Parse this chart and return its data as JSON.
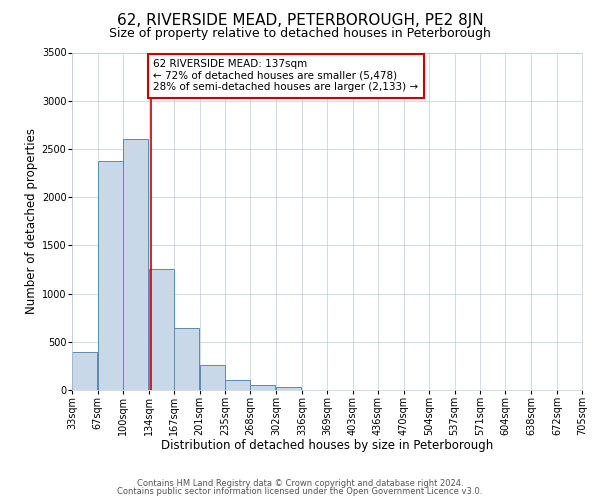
{
  "title": "62, RIVERSIDE MEAD, PETERBOROUGH, PE2 8JN",
  "subtitle": "Size of property relative to detached houses in Peterborough",
  "xlabel": "Distribution of detached houses by size in Peterborough",
  "ylabel": "Number of detached properties",
  "bar_left_edges": [
    33,
    67,
    100,
    134,
    167,
    201,
    235,
    268,
    302,
    336,
    369,
    403,
    436,
    470,
    504,
    537,
    571,
    604,
    638,
    672
  ],
  "bar_heights": [
    390,
    2380,
    2600,
    1250,
    640,
    255,
    105,
    50,
    30,
    0,
    0,
    0,
    0,
    0,
    0,
    0,
    0,
    0,
    0,
    0
  ],
  "bin_width": 33,
  "bar_color": "#c8d8e8",
  "bar_edge_color": "#5a8ab0",
  "vline_x": 137,
  "vline_color": "#cc0000",
  "annotation_line1": "62 RIVERSIDE MEAD: 137sqm",
  "annotation_line2": "← 72% of detached houses are smaller (5,478)",
  "annotation_line3": "28% of semi-detached houses are larger (2,133) →",
  "annotation_box_color": "#cc0000",
  "annotation_box_bg": "#ffffff",
  "annotation_fontsize": 7.5,
  "ylim": [
    0,
    3500
  ],
  "yticks": [
    0,
    500,
    1000,
    1500,
    2000,
    2500,
    3000,
    3500
  ],
  "xtick_labels": [
    "33sqm",
    "67sqm",
    "100sqm",
    "134sqm",
    "167sqm",
    "201sqm",
    "235sqm",
    "268sqm",
    "302sqm",
    "336sqm",
    "369sqm",
    "403sqm",
    "436sqm",
    "470sqm",
    "504sqm",
    "537sqm",
    "571sqm",
    "604sqm",
    "638sqm",
    "672sqm",
    "705sqm"
  ],
  "footer_line1": "Contains HM Land Registry data © Crown copyright and database right 2024.",
  "footer_line2": "Contains public sector information licensed under the Open Government Licence v3.0.",
  "background_color": "#ffffff",
  "grid_color": "#c0ccd8",
  "title_fontsize": 11,
  "subtitle_fontsize": 9,
  "axis_label_fontsize": 8.5,
  "tick_fontsize": 7
}
